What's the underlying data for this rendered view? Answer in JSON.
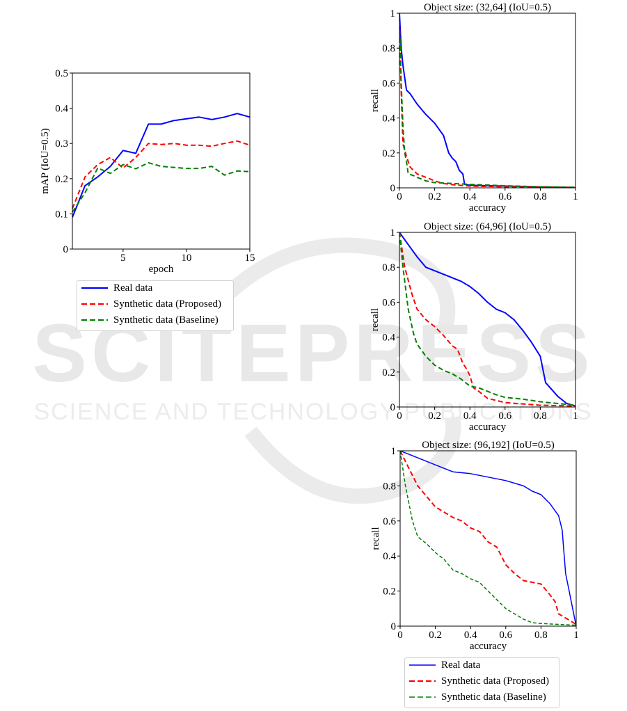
{
  "chart_data": [
    {
      "type": "line",
      "xlabel": "epoch",
      "ylabel": "mAP (IoU=0.5)",
      "xlim": [
        1,
        15
      ],
      "ylim": [
        0,
        0.5
      ],
      "xticks": [
        5,
        10,
        15
      ],
      "yticks": [
        0.0,
        0.1,
        0.2,
        0.3,
        0.4,
        0.5
      ],
      "grid": false,
      "legend_placement": "below",
      "series": [
        {
          "name": "Real data",
          "color": "#0000ff",
          "style": "solid",
          "x": [
            1,
            2,
            3,
            4,
            5,
            6,
            7,
            8,
            9,
            10,
            11,
            12,
            13,
            14,
            15
          ],
          "y": [
            0.09,
            0.18,
            0.205,
            0.235,
            0.28,
            0.272,
            0.355,
            0.355,
            0.365,
            0.37,
            0.375,
            0.368,
            0.375,
            0.385,
            0.375
          ]
        },
        {
          "name": "Synthetic data (Proposed)",
          "color": "#ff0000",
          "style": "dashed",
          "x": [
            1,
            2,
            3,
            4,
            5,
            6,
            7,
            8,
            9,
            10,
            11,
            12,
            13,
            14,
            15
          ],
          "y": [
            0.115,
            0.205,
            0.24,
            0.26,
            0.23,
            0.26,
            0.3,
            0.297,
            0.3,
            0.295,
            0.295,
            0.292,
            0.3,
            0.307,
            0.295
          ]
        },
        {
          "name": "Synthetic data (Baseline)",
          "color": "#008000",
          "style": "dashed",
          "x": [
            1,
            2,
            3,
            4,
            5,
            6,
            7,
            8,
            9,
            10,
            11,
            12,
            13,
            14,
            15
          ],
          "y": [
            0.105,
            0.16,
            0.23,
            0.215,
            0.24,
            0.228,
            0.245,
            0.235,
            0.232,
            0.229,
            0.229,
            0.235,
            0.21,
            0.222,
            0.22
          ]
        }
      ]
    },
    {
      "type": "line",
      "title": "Object size: (32,64] (IoU=0.5)",
      "xlabel": "accuracy",
      "ylabel": "recall",
      "xlim": [
        0,
        1
      ],
      "ylim": [
        0,
        1
      ],
      "xticks": [
        0.0,
        0.2,
        0.4,
        0.6,
        0.8,
        1.0
      ],
      "yticks": [
        0.0,
        0.2,
        0.4,
        0.6,
        0.8,
        1.0
      ],
      "grid": false,
      "series": [
        {
          "name": "Real data",
          "color": "#0000ff",
          "style": "solid",
          "x": [
            0.0,
            0.01,
            0.02,
            0.04,
            0.06,
            0.1,
            0.15,
            0.2,
            0.25,
            0.28,
            0.3,
            0.32,
            0.34,
            0.36,
            0.37,
            0.4,
            0.5,
            0.6,
            0.7,
            0.8,
            0.9,
            1.0
          ],
          "y": [
            1.0,
            0.8,
            0.7,
            0.56,
            0.54,
            0.48,
            0.42,
            0.37,
            0.3,
            0.2,
            0.17,
            0.15,
            0.1,
            0.08,
            0.02,
            0.015,
            0.012,
            0.01,
            0.008,
            0.006,
            0.004,
            0.002
          ]
        },
        {
          "name": "Synthetic data (Proposed)",
          "color": "#ff0000",
          "style": "dashed",
          "x": [
            0.0,
            0.01,
            0.02,
            0.04,
            0.06,
            0.1,
            0.15,
            0.2,
            0.25,
            0.3,
            0.4,
            0.6,
            0.8,
            1.0
          ],
          "y": [
            0.95,
            0.55,
            0.25,
            0.18,
            0.12,
            0.08,
            0.06,
            0.04,
            0.025,
            0.018,
            0.01,
            0.006,
            0.004,
            0.002
          ]
        },
        {
          "name": "Synthetic data (Baseline)",
          "color": "#008000",
          "style": "dashed",
          "x": [
            0.0,
            0.005,
            0.01,
            0.02,
            0.03,
            0.04,
            0.05,
            0.08,
            0.1,
            0.15,
            0.2,
            0.3,
            0.4,
            0.6,
            0.8,
            1.0
          ],
          "y": [
            0.9,
            0.8,
            0.6,
            0.35,
            0.2,
            0.15,
            0.08,
            0.07,
            0.06,
            0.04,
            0.03,
            0.025,
            0.02,
            0.012,
            0.006,
            0.003
          ]
        }
      ]
    },
    {
      "type": "line",
      "title": "Object size: (64,96] (IoU=0.5)",
      "xlabel": "accuracy",
      "ylabel": "recall",
      "xlim": [
        0,
        1
      ],
      "ylim": [
        0,
        1
      ],
      "xticks": [
        0.0,
        0.2,
        0.4,
        0.6,
        0.8,
        1.0
      ],
      "yticks": [
        0.0,
        0.2,
        0.4,
        0.6,
        0.8,
        1.0
      ],
      "grid": false,
      "series": [
        {
          "name": "Real data",
          "color": "#0000ff",
          "style": "solid",
          "x": [
            0.0,
            0.05,
            0.1,
            0.15,
            0.2,
            0.25,
            0.3,
            0.35,
            0.4,
            0.45,
            0.5,
            0.55,
            0.6,
            0.65,
            0.7,
            0.75,
            0.8,
            0.83,
            0.9,
            0.95,
            1.0
          ],
          "y": [
            1.0,
            0.93,
            0.86,
            0.8,
            0.78,
            0.76,
            0.74,
            0.72,
            0.69,
            0.65,
            0.6,
            0.56,
            0.54,
            0.5,
            0.44,
            0.37,
            0.29,
            0.14,
            0.06,
            0.02,
            0.005
          ]
        },
        {
          "name": "Synthetic data (Proposed)",
          "color": "#ff0000",
          "style": "dashed",
          "x": [
            0.0,
            0.03,
            0.07,
            0.1,
            0.15,
            0.2,
            0.25,
            0.3,
            0.33,
            0.36,
            0.38,
            0.4,
            0.42,
            0.45,
            0.5,
            0.6,
            0.8,
            1.0
          ],
          "y": [
            1.0,
            0.8,
            0.65,
            0.56,
            0.5,
            0.46,
            0.41,
            0.35,
            0.33,
            0.25,
            0.22,
            0.18,
            0.11,
            0.09,
            0.05,
            0.025,
            0.01,
            0.005
          ]
        },
        {
          "name": "Synthetic data (Baseline)",
          "color": "#008000",
          "style": "dashed",
          "x": [
            0.0,
            0.02,
            0.05,
            0.08,
            0.1,
            0.15,
            0.2,
            0.25,
            0.3,
            0.35,
            0.4,
            0.45,
            0.5,
            0.55,
            0.6,
            0.7,
            0.8,
            0.9,
            1.0
          ],
          "y": [
            1.0,
            0.8,
            0.56,
            0.42,
            0.36,
            0.29,
            0.24,
            0.21,
            0.19,
            0.16,
            0.12,
            0.11,
            0.09,
            0.07,
            0.055,
            0.045,
            0.03,
            0.02,
            0.01
          ]
        }
      ]
    },
    {
      "type": "line",
      "title": "Object size: (96,192] (IoU=0.5)",
      "xlabel": "accuracy",
      "ylabel": "recall",
      "xlim": [
        0,
        1
      ],
      "ylim": [
        0,
        1
      ],
      "xticks": [
        0.0,
        0.2,
        0.4,
        0.6,
        0.8,
        1.0
      ],
      "yticks": [
        0.0,
        0.2,
        0.4,
        0.6,
        0.8,
        1.0
      ],
      "grid": false,
      "legend_placement": "below",
      "series": [
        {
          "name": "Real data",
          "color": "#0000ff",
          "style": "solid",
          "x": [
            0.0,
            0.1,
            0.2,
            0.3,
            0.4,
            0.5,
            0.6,
            0.7,
            0.75,
            0.8,
            0.85,
            0.9,
            0.92,
            0.94,
            0.96,
            0.98,
            1.0
          ],
          "y": [
            1.0,
            0.96,
            0.92,
            0.88,
            0.87,
            0.85,
            0.83,
            0.8,
            0.77,
            0.75,
            0.7,
            0.63,
            0.55,
            0.3,
            0.2,
            0.1,
            0.0
          ]
        },
        {
          "name": "Synthetic data (Proposed)",
          "color": "#ff0000",
          "style": "dashed",
          "x": [
            0.0,
            0.05,
            0.1,
            0.15,
            0.2,
            0.25,
            0.3,
            0.35,
            0.4,
            0.45,
            0.5,
            0.55,
            0.6,
            0.65,
            0.7,
            0.75,
            0.8,
            0.85,
            0.88,
            0.9,
            0.95,
            1.0
          ],
          "y": [
            1.0,
            0.9,
            0.8,
            0.74,
            0.68,
            0.65,
            0.62,
            0.6,
            0.56,
            0.54,
            0.48,
            0.45,
            0.35,
            0.3,
            0.26,
            0.25,
            0.24,
            0.18,
            0.14,
            0.07,
            0.04,
            0.01
          ]
        },
        {
          "name": "Synthetic data (Baseline)",
          "color": "#008000",
          "style": "dashed",
          "x": [
            0.0,
            0.03,
            0.07,
            0.1,
            0.15,
            0.2,
            0.25,
            0.3,
            0.35,
            0.4,
            0.45,
            0.5,
            0.55,
            0.6,
            0.65,
            0.7,
            0.75,
            0.8,
            0.9,
            1.0
          ],
          "y": [
            1.0,
            0.8,
            0.6,
            0.51,
            0.47,
            0.42,
            0.38,
            0.32,
            0.3,
            0.27,
            0.25,
            0.2,
            0.15,
            0.1,
            0.07,
            0.04,
            0.02,
            0.015,
            0.01,
            0.005
          ]
        }
      ]
    }
  ],
  "legend_left": [
    {
      "label": "Real data",
      "color": "#0000ff",
      "style": "solid",
      "width": 2.2
    },
    {
      "label": "Synthetic data (Proposed)",
      "color": "#ff0000",
      "style": "dashed",
      "width": 2.2
    },
    {
      "label": "Synthetic data (Baseline)",
      "color": "#008000",
      "style": "dashed",
      "width": 2.2
    }
  ],
  "legend_right": [
    {
      "label": "Real data",
      "color": "#0000ff",
      "style": "solid",
      "width": 1.4
    },
    {
      "label": "Synthetic data (Proposed)",
      "color": "#ff0000",
      "style": "dashed",
      "width": 2.2
    },
    {
      "label": "Synthetic data (Baseline)",
      "color": "#008000",
      "style": "dashed",
      "width": 1.4
    }
  ],
  "watermark": {
    "line1": "SCITEPRESS",
    "line2": "SCIENCE AND TECHNOLOGY PUBLICATIONS",
    "color": "#e6e6e6"
  }
}
